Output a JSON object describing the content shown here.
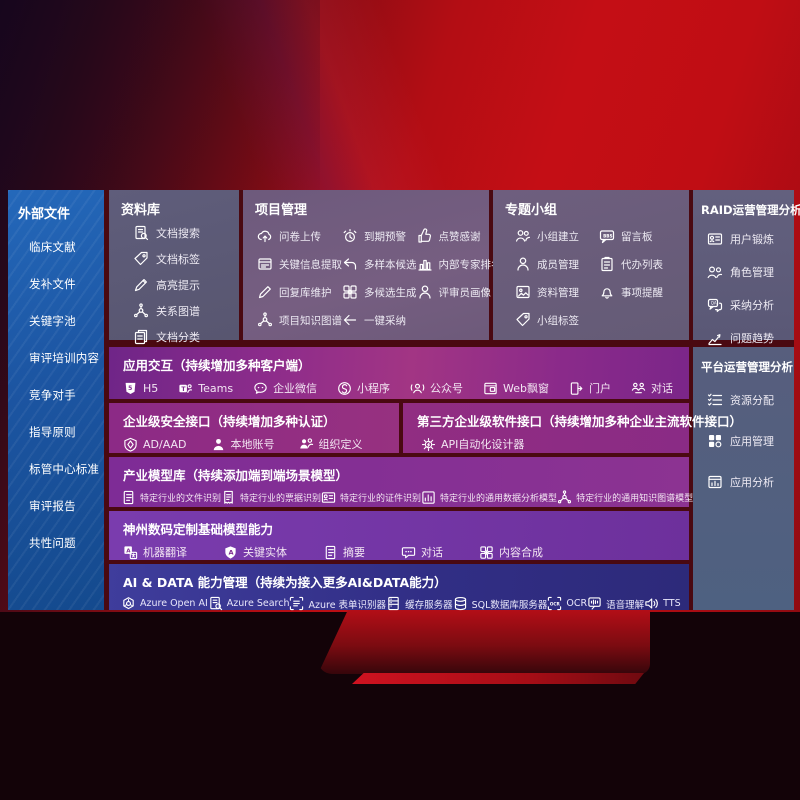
{
  "palette": {
    "bg_red": "#c00d15",
    "divider_maroon": "#4a0911",
    "sidebar_blue": "#1c55a2",
    "panel_gray": "#5e5c7a",
    "row_magenta": "#8d2c8b",
    "row_purple": "#7a3cae",
    "row_indigo": "#312e85"
  },
  "sidebar": {
    "title": "外部文件",
    "items": [
      {
        "label": "临床文献"
      },
      {
        "label": "发补文件"
      },
      {
        "label": "关键字池"
      },
      {
        "label": "审评培训内容"
      },
      {
        "label": "竞争对手"
      },
      {
        "label": "指导原则"
      },
      {
        "label": "标管中心标准"
      },
      {
        "label": "审评报告"
      },
      {
        "label": "共性问题"
      }
    ]
  },
  "library": {
    "title": "资料库",
    "items": [
      {
        "label": "文档搜索",
        "icon": "doc-search"
      },
      {
        "label": "文档标签",
        "icon": "tag"
      },
      {
        "label": "高亮提示",
        "icon": "highlighter"
      },
      {
        "label": "关系图谱",
        "icon": "network"
      },
      {
        "label": "文档分类",
        "icon": "doc-stack"
      }
    ]
  },
  "project": {
    "title": "项目管理",
    "items": [
      {
        "label": "问卷上传",
        "icon": "cloud-upload"
      },
      {
        "label": "关键信息提取",
        "icon": "info-card"
      },
      {
        "label": "回复库维护",
        "icon": "pen"
      },
      {
        "label": "项目知识图谱",
        "icon": "network"
      },
      {
        "label": "到期预警",
        "icon": "alarm"
      },
      {
        "label": "多样本候选",
        "icon": "reply-arrow"
      },
      {
        "label": "多候选生成",
        "icon": "grid-plus"
      },
      {
        "label": "一键采纳",
        "icon": "adopt-arrow"
      },
      {
        "label": "点赞感谢",
        "icon": "thumbs-up"
      },
      {
        "label": "内部专家排名",
        "icon": "rank-bars"
      },
      {
        "label": "评审员画像",
        "icon": "person"
      }
    ]
  },
  "groups": {
    "title": "专题小组",
    "items": [
      {
        "label": "小组建立",
        "icon": "people"
      },
      {
        "label": "成员管理",
        "icon": "person"
      },
      {
        "label": "资料管理",
        "icon": "photo-album"
      },
      {
        "label": "小组标签",
        "icon": "tag"
      },
      {
        "label": "留言板",
        "icon": "bbs-board"
      },
      {
        "label": "代办列表",
        "icon": "clipboard-list"
      },
      {
        "label": "事项提醒",
        "icon": "bell"
      }
    ]
  },
  "raid": {
    "title": "RAID运营管理分析",
    "items": [
      {
        "label": "用户锻炼",
        "icon": "id-card"
      },
      {
        "label": "角色管理",
        "icon": "people-roles"
      },
      {
        "label": "采纳分析",
        "icon": "chat-analysis"
      },
      {
        "label": "问题趋势",
        "icon": "trend-chart"
      }
    ]
  },
  "platform": {
    "title": "平台运营管理分析",
    "items": [
      {
        "label": "资源分配",
        "icon": "list-assign"
      },
      {
        "label": "应用管理",
        "icon": "apps-grid"
      },
      {
        "label": "应用分析",
        "icon": "app-chart"
      }
    ]
  },
  "rows": {
    "interaction": {
      "title": "应用交互（持续增加多种客户端）",
      "items": [
        {
          "label": "H5",
          "icon": "h5-badge"
        },
        {
          "label": "Teams",
          "icon": "teams"
        },
        {
          "label": "企业微信",
          "icon": "wechat-chat"
        },
        {
          "label": "小程序",
          "icon": "miniprogram"
        },
        {
          "label": "公众号",
          "icon": "broadcast-person"
        },
        {
          "label": "Web飘窗",
          "icon": "web-window"
        },
        {
          "label": "门户",
          "icon": "portal-door"
        },
        {
          "label": "对话",
          "icon": "dialog-people"
        }
      ]
    },
    "security": {
      "title": "企业级安全接口（持续增加多种认证）",
      "items": [
        {
          "label": "AD/AAD",
          "icon": "shield-diamond"
        },
        {
          "label": "本地账号",
          "icon": "person-solid"
        },
        {
          "label": "组织定义",
          "icon": "org-people"
        }
      ]
    },
    "thirdparty": {
      "title": "第三方企业级软件接口（持续增加多种企业主流软件接口）",
      "items": [
        {
          "label": "API自动化设计器",
          "icon": "api-gear"
        }
      ]
    },
    "industry": {
      "title": "产业模型库（持续添加端到端场景模型）",
      "items": [
        {
          "label": "特定行业的文件识别",
          "icon": "doc-lines"
        },
        {
          "label": "特定行业的票据识别",
          "icon": "receipt"
        },
        {
          "label": "特定行业的证件识别",
          "icon": "id-card"
        },
        {
          "label": "特定行业的通用数据分析模型",
          "icon": "data-chart"
        },
        {
          "label": "特定行业的通用知识图谱模型",
          "icon": "network"
        }
      ]
    },
    "basemodel": {
      "title": "神州数码定制基础模型能力",
      "items": [
        {
          "label": "机器翻译",
          "icon": "translate"
        },
        {
          "label": "关键实体",
          "icon": "entity-shield"
        },
        {
          "label": "摘要",
          "icon": "doc-lines"
        },
        {
          "label": "对话",
          "icon": "chat-dots"
        },
        {
          "label": "内容合成",
          "icon": "grid-plus"
        }
      ]
    },
    "aidata": {
      "title": "AI & DATA 能力管理（持续为接入更多AI&DATA能力）",
      "items": [
        {
          "label": "Azure Open AI",
          "icon": "openai-knot"
        },
        {
          "label": "Azure Search",
          "icon": "doc-search"
        },
        {
          "label": "Azure 表单识别器",
          "icon": "form-recognizer"
        },
        {
          "label": "缓存服务器",
          "icon": "cache-server"
        },
        {
          "label": "SQL数据库服务器",
          "icon": "database"
        },
        {
          "label": "OCR",
          "icon": "ocr-frame"
        },
        {
          "label": "语音理解",
          "icon": "speech-wave"
        },
        {
          "label": "TTS",
          "icon": "tts-speaker"
        }
      ]
    }
  }
}
